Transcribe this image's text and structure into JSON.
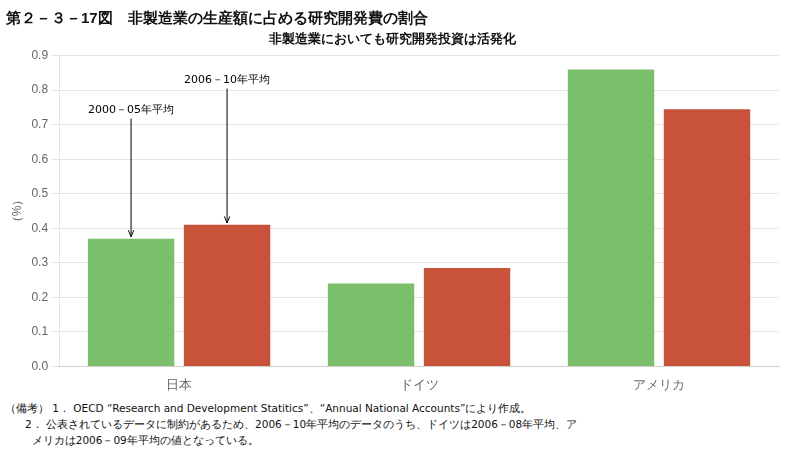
{
  "chart_data": {
    "type": "bar",
    "title": "第２－３－17図　非製造業の生産額に占める研究開発費の割合",
    "subtitle": "非製造業においても研究開発投資は活発化",
    "categories": [
      "日本",
      "ドイツ",
      "アメリカ"
    ],
    "series": [
      {
        "name": "2000－05年平均",
        "color": "#7bbf6a",
        "values": [
          0.37,
          0.24,
          0.86
        ]
      },
      {
        "name": "2006－10年平均",
        "color": "#c8523a",
        "values": [
          0.41,
          0.285,
          0.745
        ]
      }
    ],
    "ylabel": "（%）",
    "ylim": [
      0.0,
      0.9
    ],
    "yticks": [
      {
        "value": 0.0,
        "label": "0.0"
      },
      0.1,
      0.2,
      0.3,
      0.4,
      0.5,
      0.6,
      0.7,
      0.8,
      0.9
    ],
    "grid": true,
    "legend": false,
    "annotations": [
      {
        "text": "2000－05年平均",
        "series": "2000－05年平均",
        "category": "日本"
      },
      {
        "text": "2006－10年平均",
        "series": "2006－10年平均",
        "category": "日本"
      }
    ],
    "notes": [
      "（備考） 1． OECD “Research and Development Statitics”、“Annual National Accounts”により作成。",
      "      2． 公表されているデータに制約があるため、2006－10年平均のデータのうち、ドイツは2006－08年平均、ア",
      "        メリカは2006－09年平均の値となっている。"
    ]
  }
}
